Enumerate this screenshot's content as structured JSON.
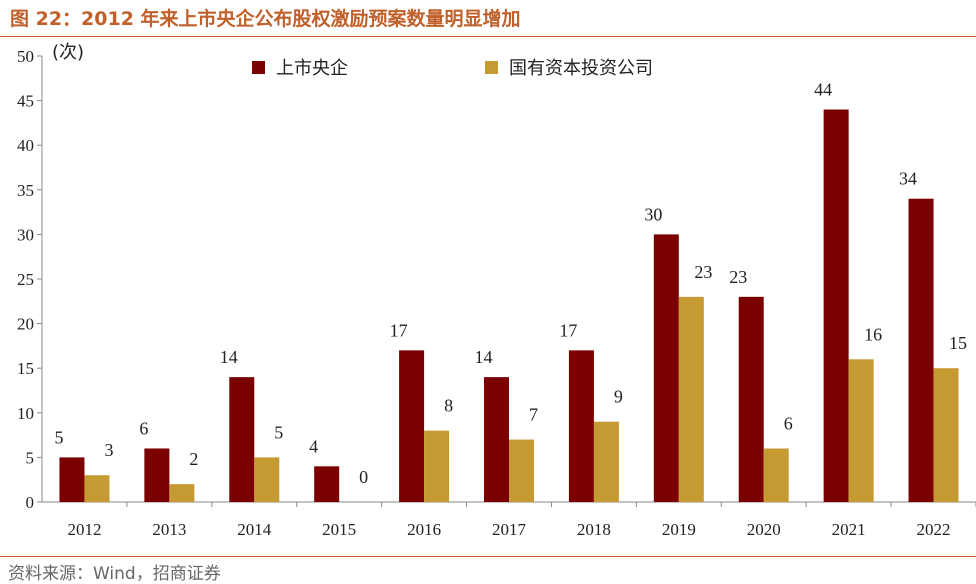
{
  "figure": {
    "title": "图 22：2012 年来上市央企公布股权激励预案数量明显增加",
    "source": "资料来源：Wind，招商证券"
  },
  "colors": {
    "accent": "#c0602a",
    "series1": "#7b0000",
    "series2": "#c59a33"
  },
  "chart_data": {
    "type": "bar",
    "title": "图 22：2012 年来上市央企公布股权激励预案数量明显增加",
    "ylabel": "(次)",
    "xlabel": "",
    "ylim": [
      0,
      50
    ],
    "yticks": [
      0,
      5,
      10,
      15,
      20,
      25,
      30,
      35,
      40,
      45,
      50
    ],
    "categories": [
      "2012",
      "2013",
      "2014",
      "2015",
      "2016",
      "2017",
      "2018",
      "2019",
      "2020",
      "2021",
      "2022"
    ],
    "series": [
      {
        "name": "上市央企",
        "color": "#7b0000",
        "values": [
          5,
          6,
          14,
          4,
          17,
          14,
          17,
          30,
          23,
          44,
          34
        ]
      },
      {
        "name": "国有资本投资公司",
        "color": "#c59a33",
        "values": [
          3,
          2,
          5,
          0,
          8,
          7,
          9,
          23,
          6,
          16,
          15
        ]
      }
    ],
    "legend": "top",
    "grid": false,
    "data_labels": true
  }
}
